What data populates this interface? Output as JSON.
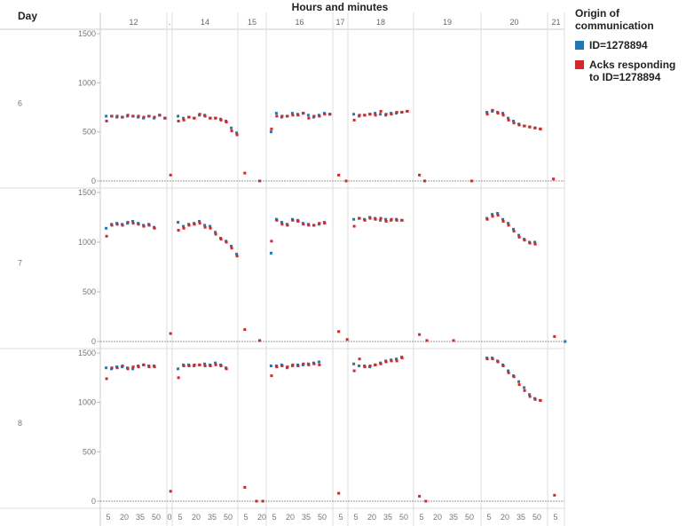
{
  "chart_data": {
    "type": "scatter",
    "title": "Hours and minutes",
    "row_header": "Day",
    "xlabel": "Hours and minutes",
    "ylabel": "",
    "ylim": [
      0,
      1500
    ],
    "y_ticks": [
      0,
      500,
      1000,
      1500
    ],
    "grid": false,
    "legend_position": "right",
    "legend_title": "Origin of communication",
    "series": [
      {
        "key": "blue",
        "name": "ID=1278894",
        "color": "#1f77b4"
      },
      {
        "key": "red",
        "name": "Acks responding to ID=1278894",
        "color": "#d62728"
      }
    ],
    "columns": [
      {
        "hour": "12",
        "ticks": [
          "5",
          "20",
          "35",
          "50"
        ]
      },
      {
        "hour": ".",
        "ticks": [
          "0"
        ]
      },
      {
        "hour": "14",
        "ticks": [
          "5",
          "20",
          "35",
          "50"
        ]
      },
      {
        "hour": "15",
        "ticks": [
          "5",
          "20"
        ]
      },
      {
        "hour": "16",
        "ticks": [
          "5",
          "20",
          "35",
          "50"
        ]
      },
      {
        "hour": "17",
        "ticks": [
          "5"
        ]
      },
      {
        "hour": "18",
        "ticks": [
          "5",
          "20",
          "35",
          "50"
        ]
      },
      {
        "hour": "19",
        "ticks": [
          "5",
          "20",
          "35",
          "50"
        ]
      },
      {
        "hour": "20",
        "ticks": [
          "5",
          "20",
          "35",
          "50"
        ]
      },
      {
        "hour": "21",
        "ticks": [
          "5"
        ]
      }
    ],
    "days": [
      {
        "day": "6",
        "hours": {
          "12": {
            "start": 3,
            "step": 5,
            "blue": [
              660,
              660,
              650,
              650,
              660,
              660,
              650,
              640,
              660,
              640,
              670,
              640
            ],
            "red": [
              610,
              660,
              660,
              650,
              670,
              660,
              660,
              650,
              660,
              650,
              670,
              640
            ]
          },
          ".": {
            "red_points": [
              [
                1,
                60
              ]
            ]
          },
          "14": {
            "start": 3,
            "step": 5,
            "blue": [
              660,
              640,
              650,
              640,
              670,
              670,
              640,
              640,
              630,
              610,
              540,
              490
            ],
            "red": [
              610,
              620,
              650,
              640,
              680,
              660,
              640,
              640,
              620,
              600,
              510,
              470
            ]
          },
          "15": {
            "red_points": [
              [
                4,
                80
              ],
              [
                18,
                0
              ]
            ]
          },
          "16": {
            "start": 2,
            "step": 5,
            "blue": [
              500,
              690,
              650,
              660,
              690,
              680,
              690,
              670,
              650,
              670,
              690,
              680
            ],
            "red": [
              530,
              660,
              660,
              660,
              670,
              670,
              690,
              640,
              660,
              660,
              680,
              680
            ]
          },
          "17": {
            "red_points": [
              [
                3,
                60
              ],
              [
                10,
                0
              ]
            ]
          },
          "18": {
            "start": 3,
            "step": 5,
            "blue": [
              680,
              660,
              670,
              680,
              690,
              680,
              670,
              690,
              690,
              700,
              710
            ],
            "red": [
              620,
              670,
              670,
              680,
              670,
              710,
              680,
              680,
              700,
              700,
              710
            ]
          },
          "19": {
            "red_points": [
              [
                3,
                60
              ],
              [
                8,
                0
              ],
              [
                52,
                0
              ]
            ]
          },
          "20": {
            "start": 3,
            "step": 5,
            "blue": [
              700,
              710,
              700,
              690,
              640,
              610,
              580,
              560,
              550,
              540,
              530
            ],
            "red": [
              680,
              720,
              690,
              670,
              620,
              590,
              570,
              560,
              550,
              540,
              530
            ]
          },
          "21": {
            "red_points": [
              [
                3,
                20
              ]
            ]
          }
        }
      },
      {
        "day": "7",
        "hours": {
          "12": {
            "start": 3,
            "step": 5,
            "blue": [
              1140,
              1180,
              1190,
              1180,
              1190,
              1210,
              1190,
              1170,
              1180,
              1150
            ],
            "red": [
              1060,
              1170,
              1180,
              1170,
              1200,
              1190,
              1180,
              1160,
              1170,
              1140
            ]
          },
          ".": {
            "red_points": [
              [
                1,
                80
              ]
            ]
          },
          "14": {
            "start": 3,
            "step": 5,
            "blue": [
              1200,
              1160,
              1180,
              1190,
              1210,
              1170,
              1160,
              1100,
              1040,
              1010,
              960,
              880
            ],
            "red": [
              1120,
              1140,
              1170,
              1180,
              1190,
              1150,
              1140,
              1080,
              1030,
              1000,
              940,
              860
            ]
          },
          "15": {
            "red_points": [
              [
                4,
                120
              ],
              [
                18,
                10
              ]
            ]
          },
          "16": {
            "start": 2,
            "step": 5,
            "blue": [
              890,
              1230,
              1200,
              1180,
              1230,
              1220,
              1190,
              1180,
              1170,
              1180,
              1200
            ],
            "red": [
              1010,
              1220,
              1180,
              1170,
              1220,
              1210,
              1180,
              1170,
              1170,
              1190,
              1190
            ]
          },
          "17": {
            "red_points": [
              [
                3,
                100
              ],
              [
                11,
                20
              ]
            ]
          },
          "18": {
            "start": 3,
            "step": 5,
            "blue": [
              1230,
              1240,
              1230,
              1250,
              1240,
              1220,
              1230,
              1220,
              1230,
              1220
            ],
            "red": [
              1160,
              1240,
              1220,
              1240,
              1230,
              1240,
              1210,
              1230,
              1220,
              1220
            ]
          },
          "19": {
            "red_points": [
              [
                3,
                70
              ],
              [
                10,
                10
              ],
              [
                35,
                10
              ]
            ]
          },
          "20": {
            "start": 3,
            "step": 5,
            "blue": [
              1240,
              1280,
              1290,
              1230,
              1190,
              1130,
              1070,
              1030,
              1000,
              1000
            ],
            "red": [
              1230,
              1260,
              1270,
              1210,
              1170,
              1110,
              1050,
              1020,
              990,
              980
            ]
          },
          "21": {
            "red_points": [
              [
                4,
                50
              ]
            ],
            "blue_points": [
              [
                14,
                0
              ]
            ]
          }
        }
      },
      {
        "day": "8",
        "hours": {
          "12": {
            "start": 3,
            "step": 5,
            "blue": [
              1350,
              1340,
              1360,
              1360,
              1350,
              1340,
              1370,
              1380,
              1370,
              1370
            ],
            "red": [
              1240,
              1350,
              1350,
              1370,
              1340,
              1360,
              1360,
              1380,
              1360,
              1360
            ]
          },
          ".": {
            "red_points": [
              [
                1,
                100
              ]
            ]
          },
          "14": {
            "start": 3,
            "step": 5,
            "blue": [
              1340,
              1380,
              1380,
              1370,
              1380,
              1390,
              1380,
              1400,
              1380,
              1350
            ],
            "red": [
              1250,
              1370,
              1370,
              1380,
              1380,
              1370,
              1370,
              1380,
              1370,
              1340
            ]
          },
          "15": {
            "red_points": [
              [
                4,
                140
              ],
              [
                15,
                0
              ],
              [
                21,
                0
              ]
            ]
          },
          "16": {
            "start": 2,
            "step": 5,
            "blue": [
              1370,
              1370,
              1380,
              1350,
              1370,
              1380,
              1380,
              1390,
              1400,
              1410
            ],
            "red": [
              1270,
              1360,
              1370,
              1360,
              1380,
              1370,
              1390,
              1380,
              1390,
              1380
            ]
          },
          "17": {
            "red_points": [
              [
                3,
                80
              ]
            ]
          },
          "18": {
            "start": 3,
            "step": 5,
            "blue": [
              1390,
              1370,
              1370,
              1360,
              1380,
              1400,
              1420,
              1430,
              1440,
              1460
            ],
            "red": [
              1320,
              1440,
              1360,
              1370,
              1380,
              1390,
              1410,
              1420,
              1420,
              1450
            ]
          },
          "19": {
            "red_points": [
              [
                3,
                50
              ],
              [
                9,
                0
              ]
            ]
          },
          "20": {
            "start": 3,
            "step": 5,
            "blue": [
              1450,
              1450,
              1420,
              1380,
              1320,
              1270,
              1210,
              1150,
              1080,
              1040,
              1020
            ],
            "red": [
              1440,
              1440,
              1410,
              1370,
              1300,
              1260,
              1180,
              1120,
              1060,
              1030,
              1020
            ]
          },
          "21": {
            "red_points": [
              [
                4,
                60
              ]
            ]
          }
        }
      }
    ]
  }
}
